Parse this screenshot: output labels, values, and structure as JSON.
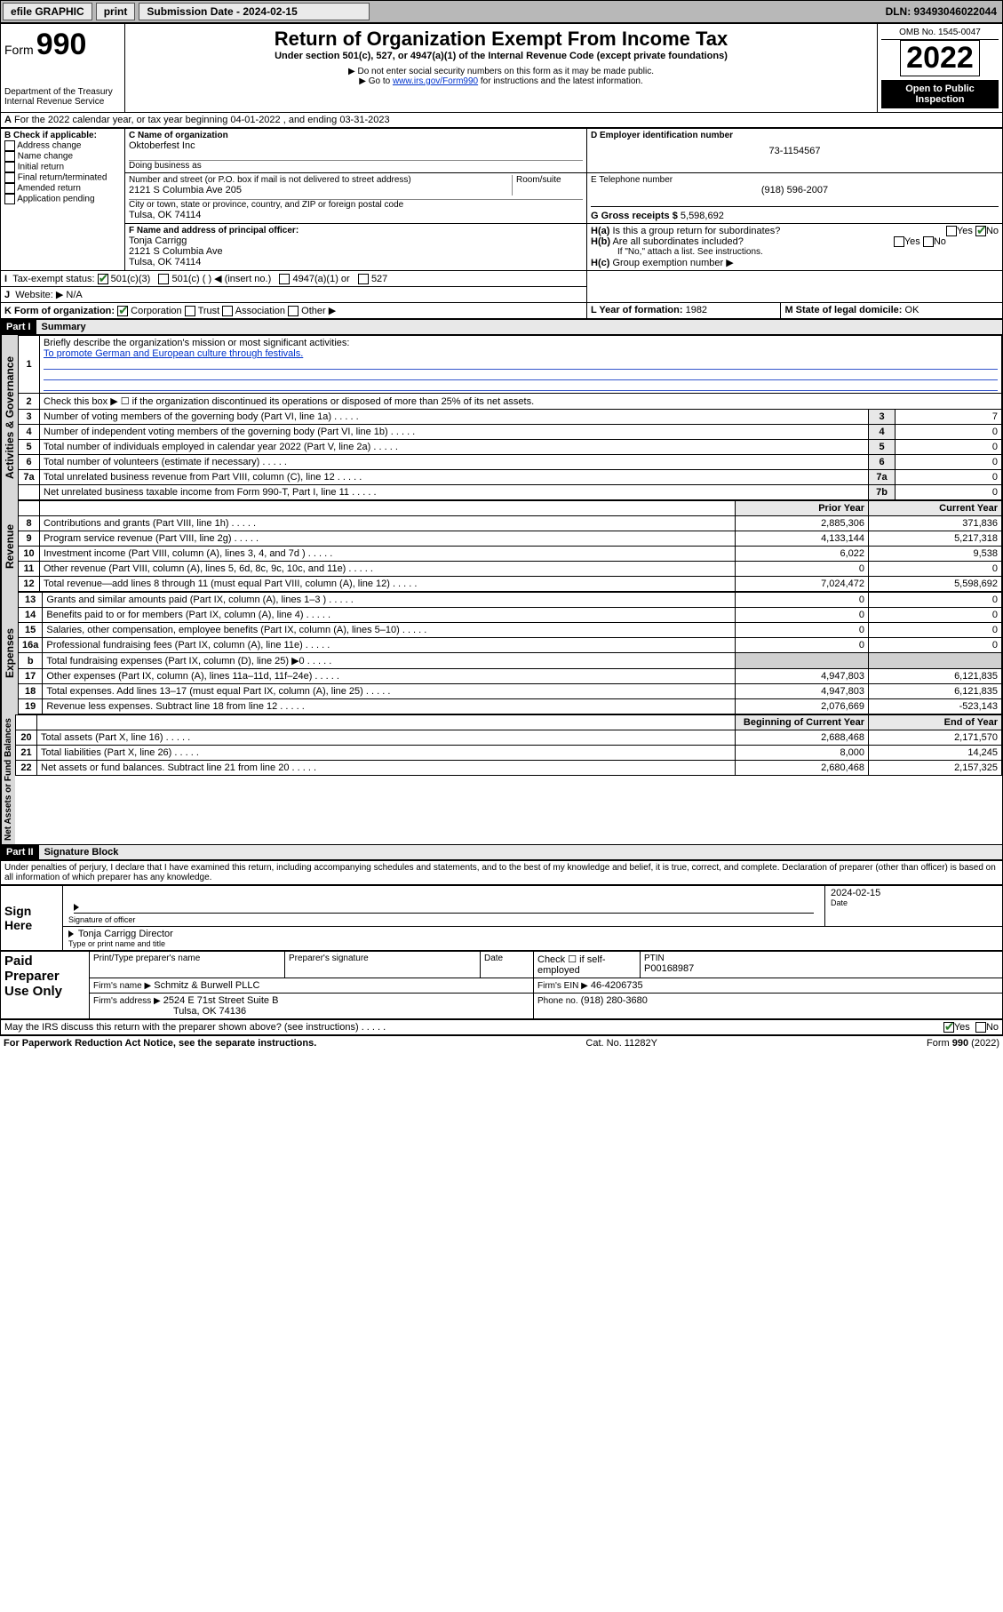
{
  "topbar": {
    "efile": "efile GRAPHIC",
    "print": "print",
    "sub_label": "Submission Date - 2024-02-15",
    "dln": "DLN: 93493046022044"
  },
  "header": {
    "form_label": "Form",
    "form_no": "990",
    "dept": "Department of the Treasury",
    "irs": "Internal Revenue Service",
    "title": "Return of Organization Exempt From Income Tax",
    "sub1": "Under section 501(c), 527, or 4947(a)(1) of the Internal Revenue Code (except private foundations)",
    "sub2": "▶ Do not enter social security numbers on this form as it may be made public.",
    "sub3_pre": "▶ Go to ",
    "sub3_link": "www.irs.gov/Form990",
    "sub3_post": " for instructions and the latest information.",
    "omb": "OMB No. 1545-0047",
    "year": "2022",
    "open": "Open to Public Inspection"
  },
  "A": {
    "line": "For the 2022 calendar year, or tax year beginning 04-01-2022   , and ending 03-31-2023"
  },
  "B": {
    "label": "B Check if applicable:",
    "items": [
      "Address change",
      "Name change",
      "Initial return",
      "Final return/terminated",
      "Amended return",
      "Application pending"
    ]
  },
  "C": {
    "name_label": "C Name of organization",
    "name": "Oktoberfest Inc",
    "dba_label": "Doing business as",
    "addr_label": "Number and street (or P.O. box if mail is not delivered to street address)",
    "room": "Room/suite",
    "addr": "2121 S Columbia Ave 205",
    "city_label": "City or town, state or province, country, and ZIP or foreign postal code",
    "city": "Tulsa, OK  74114"
  },
  "D": {
    "label": "D Employer identification number",
    "val": "73-1154567"
  },
  "E": {
    "label": "E Telephone number",
    "val": "(918) 596-2007"
  },
  "G": {
    "label": "G Gross receipts $",
    "val": "5,598,692"
  },
  "F": {
    "label": "F Name and address of principal officer:",
    "name": "Tonja Carrigg",
    "addr1": "2121 S Columbia Ave",
    "addr2": "Tulsa, OK  74114"
  },
  "H": {
    "a": "Is this a group return for subordinates?",
    "b": "Are all subordinates included?",
    "note": "If \"No,\" attach a list. See instructions.",
    "c": "Group exemption number ▶",
    "yes": "Yes",
    "no": "No"
  },
  "I": {
    "label": "Tax-exempt status:",
    "o1": "501(c)(3)",
    "o2": "501(c) (  ) ◀ (insert no.)",
    "o3": "4947(a)(1) or",
    "o4": "527"
  },
  "J": {
    "label": "Website: ▶",
    "val": "N/A"
  },
  "K": {
    "label": "K Form of organization:",
    "o1": "Corporation",
    "o2": "Trust",
    "o3": "Association",
    "o4": "Other ▶"
  },
  "L": {
    "label": "L Year of formation:",
    "val": "1982"
  },
  "M": {
    "label": "M State of legal domicile:",
    "val": "OK"
  },
  "part1": {
    "hdr": "Part I",
    "title": "Summary",
    "l1": "Briefly describe the organization's mission or most significant activities:",
    "l1v": "To promote German and European culture through festivals.",
    "l2": "Check this box ▶ ☐  if the organization discontinued its operations or disposed of more than 25% of its net assets.",
    "rows_gov": [
      {
        "n": "3",
        "t": "Number of voting members of the governing body (Part VI, line 1a)",
        "box": "3",
        "v": "7"
      },
      {
        "n": "4",
        "t": "Number of independent voting members of the governing body (Part VI, line 1b)",
        "box": "4",
        "v": "0"
      },
      {
        "n": "5",
        "t": "Total number of individuals employed in calendar year 2022 (Part V, line 2a)",
        "box": "5",
        "v": "0"
      },
      {
        "n": "6",
        "t": "Total number of volunteers (estimate if necessary)",
        "box": "6",
        "v": "0"
      },
      {
        "n": "7a",
        "t": "Total unrelated business revenue from Part VIII, column (C), line 12",
        "box": "7a",
        "v": "0"
      },
      {
        "n": "",
        "t": "Net unrelated business taxable income from Form 990-T, Part I, line 11",
        "box": "7b",
        "v": "0"
      }
    ],
    "col_prior": "Prior Year",
    "col_curr": "Current Year",
    "rows_rev": [
      {
        "n": "8",
        "t": "Contributions and grants (Part VIII, line 1h)",
        "p": "2,885,306",
        "c": "371,836"
      },
      {
        "n": "9",
        "t": "Program service revenue (Part VIII, line 2g)",
        "p": "4,133,144",
        "c": "5,217,318"
      },
      {
        "n": "10",
        "t": "Investment income (Part VIII, column (A), lines 3, 4, and 7d )",
        "p": "6,022",
        "c": "9,538"
      },
      {
        "n": "11",
        "t": "Other revenue (Part VIII, column (A), lines 5, 6d, 8c, 9c, 10c, and 11e)",
        "p": "0",
        "c": "0"
      },
      {
        "n": "12",
        "t": "Total revenue—add lines 8 through 11 (must equal Part VIII, column (A), line 12)",
        "p": "7,024,472",
        "c": "5,598,692"
      }
    ],
    "rows_exp": [
      {
        "n": "13",
        "t": "Grants and similar amounts paid (Part IX, column (A), lines 1–3 )",
        "p": "0",
        "c": "0"
      },
      {
        "n": "14",
        "t": "Benefits paid to or for members (Part IX, column (A), line 4)",
        "p": "0",
        "c": "0"
      },
      {
        "n": "15",
        "t": "Salaries, other compensation, employee benefits (Part IX, column (A), lines 5–10)",
        "p": "0",
        "c": "0"
      },
      {
        "n": "16a",
        "t": "Professional fundraising fees (Part IX, column (A), line 11e)",
        "p": "0",
        "c": "0"
      },
      {
        "n": "b",
        "t": "Total fundraising expenses (Part IX, column (D), line 25) ▶0",
        "p": "",
        "c": ""
      },
      {
        "n": "17",
        "t": "Other expenses (Part IX, column (A), lines 11a–11d, 11f–24e)",
        "p": "4,947,803",
        "c": "6,121,835"
      },
      {
        "n": "18",
        "t": "Total expenses. Add lines 13–17 (must equal Part IX, column (A), line 25)",
        "p": "4,947,803",
        "c": "6,121,835"
      },
      {
        "n": "19",
        "t": "Revenue less expenses. Subtract line 18 from line 12",
        "p": "2,076,669",
        "c": "-523,143"
      }
    ],
    "col_beg": "Beginning of Current Year",
    "col_end": "End of Year",
    "rows_net": [
      {
        "n": "20",
        "t": "Total assets (Part X, line 16)",
        "p": "2,688,468",
        "c": "2,171,570"
      },
      {
        "n": "21",
        "t": "Total liabilities (Part X, line 26)",
        "p": "8,000",
        "c": "14,245"
      },
      {
        "n": "22",
        "t": "Net assets or fund balances. Subtract line 21 from line 20",
        "p": "2,680,468",
        "c": "2,157,325"
      }
    ],
    "vlabels": {
      "gov": "Activities & Governance",
      "rev": "Revenue",
      "exp": "Expenses",
      "net": "Net Assets or Fund Balances"
    }
  },
  "part2": {
    "hdr": "Part II",
    "title": "Signature Block",
    "decl": "Under penalties of perjury, I declare that I have examined this return, including accompanying schedules and statements, and to the best of my knowledge and belief, it is true, correct, and complete. Declaration of preparer (other than officer) is based on all information of which preparer has any knowledge.",
    "sign_here": "Sign Here",
    "sig_officer": "Signature of officer",
    "date_lbl": "Date",
    "date": "2024-02-15",
    "officer_name": "Tonja Carrigg  Director",
    "officer_cap": "Type or print name and title",
    "paid": "Paid Preparer Use Only",
    "prep_name_lbl": "Print/Type preparer's name",
    "prep_sig_lbl": "Preparer's signature",
    "prep_date_lbl": "Date",
    "check_self": "Check ☐ if self-employed",
    "ptin_lbl": "PTIN",
    "ptin": "P00168987",
    "firm_name_lbl": "Firm's name   ▶",
    "firm_name": "Schmitz & Burwell PLLC",
    "firm_ein_lbl": "Firm's EIN ▶",
    "firm_ein": "46-4206735",
    "firm_addr_lbl": "Firm's address ▶",
    "firm_addr1": "2524 E 71st Street Suite B",
    "firm_addr2": "Tulsa, OK  74136",
    "phone_lbl": "Phone no.",
    "phone": "(918) 280-3680",
    "discuss": "May the IRS discuss this return with the preparer shown above? (see instructions)"
  },
  "footer": {
    "left": "For Paperwork Reduction Act Notice, see the separate instructions.",
    "mid": "Cat. No. 11282Y",
    "right": "Form 990 (2022)"
  }
}
